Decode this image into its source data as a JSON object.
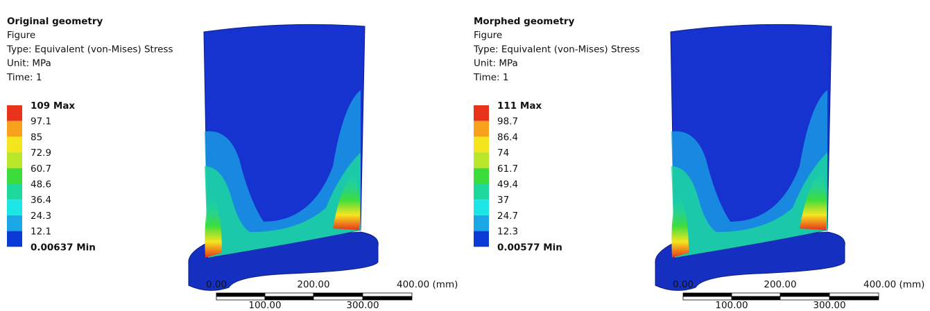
{
  "panels": [
    {
      "title": "Original geometry",
      "lines": [
        "Figure",
        "Type: Equivalent (von-Mises) Stress",
        "Unit: MPa",
        "Time: 1"
      ],
      "legend": [
        "109 Max",
        "97.1",
        "85",
        "72.9",
        "60.7",
        "48.6",
        "36.4",
        "24.3",
        "12.1",
        "0.00637 Min"
      ],
      "scale": {
        "top": [
          "0.00",
          "200.00",
          "400.00 (mm)"
        ],
        "bottom": [
          "100.00",
          "300.00"
        ]
      }
    },
    {
      "title": "Morphed geometry",
      "lines": [
        "Figure",
        "Type: Equivalent (von-Mises) Stress",
        "Unit: MPa",
        "Time: 1"
      ],
      "legend": [
        "111 Max",
        "98.7",
        "86.4",
        "74",
        "61.7",
        "49.4",
        "37",
        "24.7",
        "12.3",
        "0.00577 Min"
      ],
      "scale": {
        "top": [
          "0.00",
          "200.00",
          "400.00 (mm)"
        ],
        "bottom": [
          "100.00",
          "300.00"
        ]
      }
    }
  ]
}
